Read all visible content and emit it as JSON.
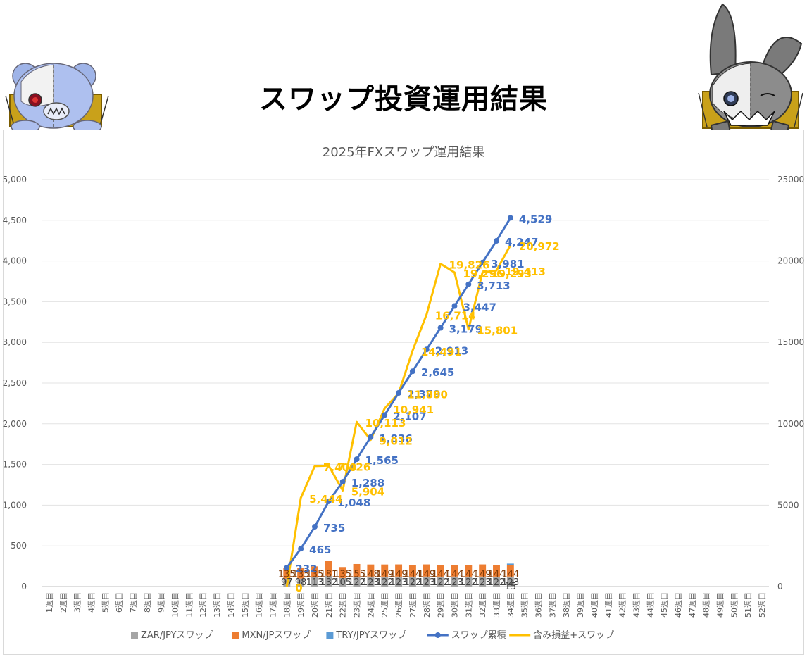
{
  "page": {
    "title": "スワップ投資運用結果"
  },
  "chart_data": {
    "type": "bar",
    "title": "2025年FXスワップ運用結果",
    "categories": [
      "1週目",
      "2週目",
      "3週目",
      "4週目",
      "5週目",
      "6週目",
      "7週目",
      "8週目",
      "9週目",
      "10週目",
      "11週目",
      "12週目",
      "13週目",
      "14週目",
      "15週目",
      "16週目",
      "17週目",
      "18週目",
      "19週目",
      "20週目",
      "21週目",
      "22週目",
      "23週目",
      "24週目",
      "25週目",
      "26週目",
      "27週目",
      "28週目",
      "29週目",
      "30週目",
      "31週目",
      "32週目",
      "33週目",
      "34週目",
      "35週目",
      "36週目",
      "37週目",
      "38週目",
      "39週目",
      "40週目",
      "41週目",
      "42週目",
      "43週目",
      "44週目",
      "45週目",
      "46週目",
      "47週目",
      "48週目",
      "49週目",
      "50週目",
      "51週目",
      "52週目"
    ],
    "y_left": {
      "ylim": [
        0,
        5000
      ],
      "ticks": [
        "0",
        "500",
        "1,000",
        "1,500",
        "2,000",
        "2,500",
        "3,000",
        "3,500",
        "4,000",
        "4,500",
        "5,000"
      ]
    },
    "y_right": {
      "ylim": [
        0,
        25000
      ],
      "ticks": [
        "0",
        "5000",
        "10000",
        "15000",
        "20000",
        "25000"
      ]
    },
    "grid": true,
    "legend_position": "bottom",
    "series": [
      {
        "name": "ZAR/JPYスワップ",
        "type": "stacked-bar",
        "axis": "left",
        "color": "#a5a5a5",
        "values": [
          null,
          null,
          null,
          null,
          null,
          null,
          null,
          null,
          null,
          null,
          null,
          null,
          null,
          null,
          null,
          null,
          null,
          97,
          98,
          113,
          132,
          105,
          122,
          123,
          122,
          123,
          122,
          123,
          122,
          123,
          122,
          123,
          122,
          123,
          null,
          null,
          null,
          null,
          null,
          null,
          null,
          null,
          null,
          null,
          null,
          null,
          null,
          null,
          null,
          null,
          null,
          null
        ]
      },
      {
        "name": "MXN/JPスワップ",
        "type": "stacked-bar",
        "axis": "left",
        "color": "#ed7d31",
        "values": [
          null,
          null,
          null,
          null,
          null,
          null,
          null,
          null,
          null,
          null,
          null,
          null,
          null,
          null,
          null,
          null,
          null,
          135,
          135,
          135,
          181,
          135,
          155,
          148,
          149,
          149,
          144,
          149,
          144,
          144,
          144,
          149,
          144,
          144,
          null,
          null,
          null,
          null,
          null,
          null,
          null,
          null,
          null,
          null,
          null,
          null,
          null,
          null,
          null,
          null,
          null,
          null
        ]
      },
      {
        "name": "TRY/JPYスワップ",
        "type": "stacked-bar",
        "axis": "left",
        "color": "#5b9bd5",
        "values": [
          null,
          null,
          null,
          null,
          null,
          null,
          null,
          null,
          null,
          null,
          null,
          null,
          null,
          null,
          null,
          null,
          null,
          0,
          0,
          0,
          0,
          0,
          0,
          0,
          0,
          0,
          0,
          0,
          0,
          0,
          0,
          0,
          0,
          15,
          null,
          null,
          null,
          null,
          null,
          null,
          null,
          null,
          null,
          null,
          null,
          null,
          null,
          null,
          null,
          null,
          null,
          null
        ]
      },
      {
        "name": "スワップ累積",
        "type": "line-marker",
        "axis": "left",
        "color": "#4472c4",
        "values": [
          null,
          null,
          null,
          null,
          null,
          null,
          null,
          null,
          null,
          null,
          null,
          null,
          null,
          null,
          null,
          null,
          null,
          232,
          465,
          735,
          1048,
          1288,
          1565,
          1836,
          2107,
          2379,
          2645,
          2913,
          3179,
          3447,
          3713,
          3981,
          4247,
          4529,
          null,
          null,
          null,
          null,
          null,
          null,
          null,
          null,
          null,
          null,
          null,
          null,
          null,
          null,
          null,
          null,
          null,
          null
        ]
      },
      {
        "name": "含み損益+スワップ",
        "type": "line",
        "axis": "right",
        "color": "#ffc000",
        "values": [
          null,
          null,
          null,
          null,
          null,
          null,
          null,
          null,
          null,
          null,
          null,
          null,
          null,
          null,
          null,
          null,
          null,
          0,
          5444,
          7400,
          7426,
          5904,
          10113,
          9012,
          10941,
          11880,
          14491,
          16714,
          19826,
          19296,
          15801,
          19293,
          19413,
          20972,
          null,
          null,
          null,
          null,
          null,
          null,
          null,
          null,
          null,
          null,
          null,
          null,
          null,
          null,
          null,
          null,
          null,
          null
        ]
      }
    ],
    "bar_labels_top": [
      "135",
      "135",
      "135",
      "181",
      "135",
      "155",
      "148",
      "149",
      "149",
      "144",
      "149",
      "144",
      "144",
      "144",
      "149",
      "144",
      "144"
    ],
    "bar_labels_bottom": [
      "97",
      "98",
      "113",
      "132",
      "105",
      "122",
      "123",
      "122",
      "123",
      "122",
      "123",
      "122",
      "123",
      "122",
      "123",
      "122",
      "123"
    ],
    "bar_label_extra": "15",
    "cumulative_labels": [
      "232",
      "465",
      "735",
      "1,048",
      "1,288",
      "1,565",
      "1,836",
      "2,107",
      "2,379",
      "2,645",
      "2,913",
      "3,179",
      "3,447",
      "3,713",
      "3,981",
      "4,247",
      "4,529"
    ],
    "unrealized_labels": [
      "0",
      "5,444",
      "7,400",
      "7,426",
      "5,904",
      "10,113",
      "9,012",
      "10,941",
      "11,880",
      "14,491",
      "16,714",
      "19,826",
      "19,296",
      "15,801",
      "19,293",
      "19,413",
      "20,972"
    ]
  }
}
